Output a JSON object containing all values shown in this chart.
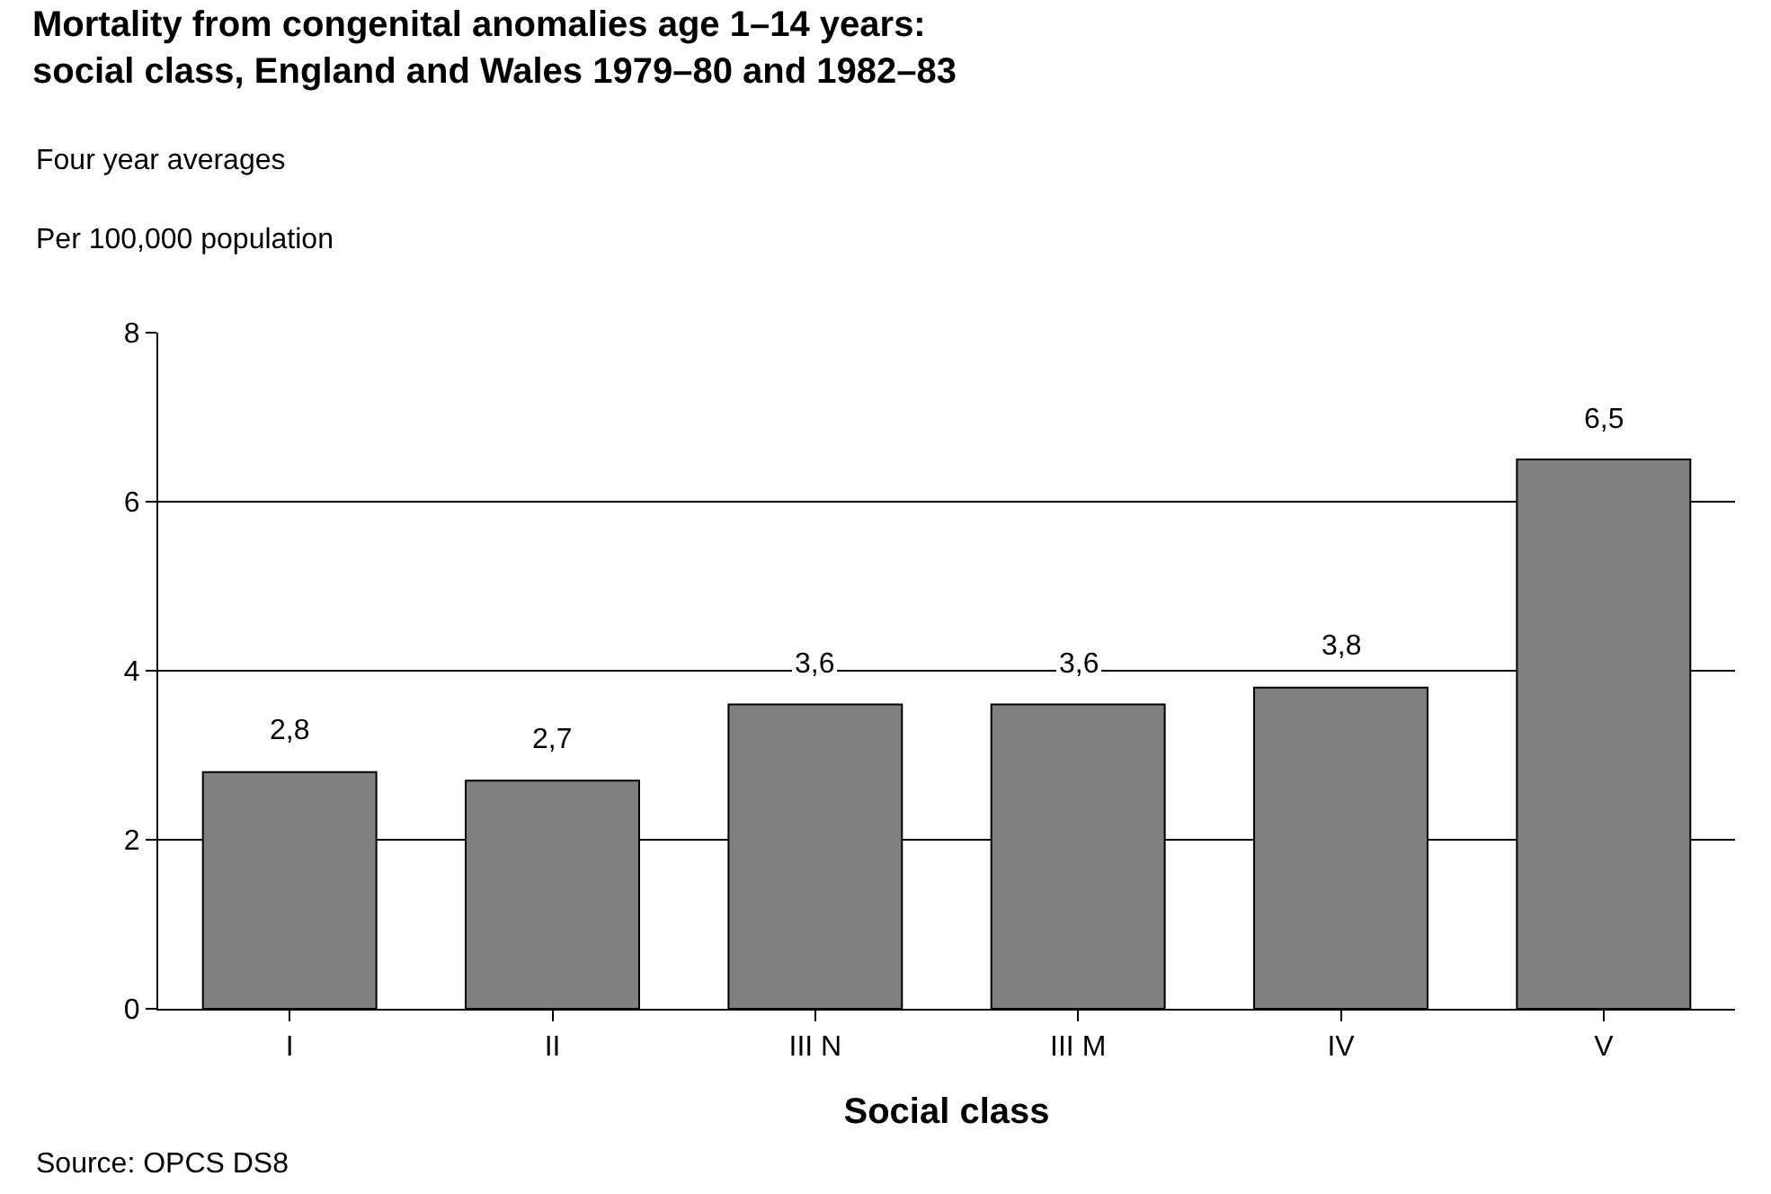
{
  "chart_data": {
    "type": "bar",
    "title": "Mortality from congenital anomalies age 1–14 years:\nsocial class, England and Wales 1979–80 and 1982–83",
    "subtitle": "Four year averages",
    "ylabel": "Per 100,000 population",
    "xlabel": "Social class",
    "categories": [
      "I",
      "II",
      "III N",
      "III M",
      "IV",
      "V"
    ],
    "values": [
      2.8,
      2.7,
      3.6,
      3.6,
      3.8,
      6.5
    ],
    "value_labels": [
      "2,8",
      "2,7",
      "3,6",
      "3,6",
      "3,8",
      "6,5"
    ],
    "color": "#808080",
    "ylim": [
      0,
      8
    ],
    "yticks": [
      0,
      2,
      4,
      6,
      8
    ],
    "grid": "y",
    "annotations": [
      "Source: OPCS DS8"
    ]
  }
}
